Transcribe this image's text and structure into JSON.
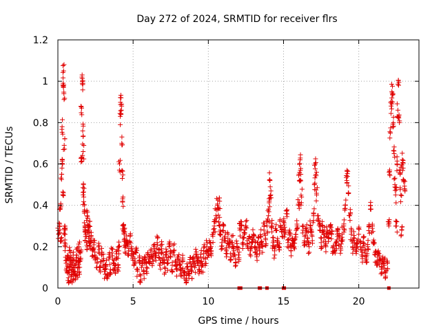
{
  "chart_data": {
    "type": "scatter",
    "title": "Day 272 of 2024, SRMTID for receiver flrs",
    "xlabel": "GPS time / hours",
    "ylabel": "SRMTID / TECUs",
    "xlim": [
      0,
      24
    ],
    "ylim": [
      0,
      1.2
    ],
    "xticks": [
      0,
      5,
      10,
      15,
      20
    ],
    "xtick_labels": [
      "0",
      "5",
      "10",
      "15",
      "20"
    ],
    "yticks": [
      0,
      0.2,
      0.4,
      0.6,
      0.8,
      1,
      1.2
    ],
    "ytick_labels": [
      "0",
      "0.2",
      "0.4",
      "0.6",
      "0.8",
      "1",
      "1.2"
    ],
    "grid": true,
    "marker": "+",
    "color": "#e00000",
    "series": [
      {
        "name": "flrs",
        "points": [
          [
            0.05,
            0.26
          ],
          [
            0.1,
            0.3
          ],
          [
            0.15,
            0.38
          ],
          [
            0.2,
            0.24
          ],
          [
            0.25,
            0.55
          ],
          [
            0.28,
            0.78
          ],
          [
            0.3,
            0.62
          ],
          [
            0.33,
            0.45
          ],
          [
            0.35,
            0.99
          ],
          [
            0.38,
            1.05
          ],
          [
            0.4,
            0.94
          ],
          [
            0.42,
            0.69
          ],
          [
            0.45,
            0.3
          ],
          [
            0.48,
            0.26
          ],
          [
            0.5,
            0.2
          ],
          [
            0.55,
            0.12
          ],
          [
            0.6,
            0.08
          ],
          [
            0.65,
            0.15
          ],
          [
            0.7,
            0.05
          ],
          [
            0.75,
            0.1
          ],
          [
            0.8,
            0.18
          ],
          [
            0.85,
            0.12
          ],
          [
            0.9,
            0.06
          ],
          [
            0.95,
            0.09
          ],
          [
            1.0,
            0.14
          ],
          [
            1.05,
            0.07
          ],
          [
            1.1,
            0.11
          ],
          [
            1.15,
            0.04
          ],
          [
            1.2,
            0.12
          ],
          [
            1.25,
            0.16
          ],
          [
            1.3,
            0.08
          ],
          [
            1.35,
            0.13
          ],
          [
            1.4,
            0.2
          ],
          [
            1.45,
            0.1
          ],
          [
            1.5,
            0.17
          ],
          [
            1.55,
            0.61
          ],
          [
            1.58,
            0.87
          ],
          [
            1.6,
            1.02
          ],
          [
            1.62,
            0.99
          ],
          [
            1.65,
            0.76
          ],
          [
            1.68,
            0.66
          ],
          [
            1.7,
            0.5
          ],
          [
            1.72,
            0.44
          ],
          [
            1.75,
            0.37
          ],
          [
            1.8,
            0.3
          ],
          [
            1.85,
            0.26
          ],
          [
            1.9,
            0.22
          ],
          [
            1.95,
            0.35
          ],
          [
            2.0,
            0.28
          ],
          [
            2.05,
            0.24
          ],
          [
            2.1,
            0.3
          ],
          [
            2.15,
            0.2
          ],
          [
            2.2,
            0.25
          ],
          [
            2.3,
            0.18
          ],
          [
            2.4,
            0.22
          ],
          [
            2.5,
            0.15
          ],
          [
            2.6,
            0.12
          ],
          [
            2.7,
            0.2
          ],
          [
            2.8,
            0.1
          ],
          [
            2.9,
            0.16
          ],
          [
            3.0,
            0.13
          ],
          [
            3.1,
            0.08
          ],
          [
            3.2,
            0.11
          ],
          [
            3.3,
            0.06
          ],
          [
            3.4,
            0.14
          ],
          [
            3.5,
            0.09
          ],
          [
            3.6,
            0.17
          ],
          [
            3.7,
            0.12
          ],
          [
            3.8,
            0.1
          ],
          [
            3.9,
            0.15
          ],
          [
            4.0,
            0.11
          ],
          [
            4.05,
            0.2
          ],
          [
            4.1,
            0.6
          ],
          [
            4.15,
            0.83
          ],
          [
            4.2,
            0.92
          ],
          [
            4.22,
            0.86
          ],
          [
            4.25,
            0.7
          ],
          [
            4.28,
            0.53
          ],
          [
            4.3,
            0.42
          ],
          [
            4.35,
            0.3
          ],
          [
            4.4,
            0.26
          ],
          [
            4.45,
            0.24
          ],
          [
            4.5,
            0.2
          ],
          [
            4.6,
            0.22
          ],
          [
            4.7,
            0.18
          ],
          [
            4.8,
            0.25
          ],
          [
            4.9,
            0.19
          ],
          [
            5.0,
            0.15
          ],
          [
            5.1,
            0.12
          ],
          [
            5.2,
            0.17
          ],
          [
            5.3,
            0.09
          ],
          [
            5.4,
            0.13
          ],
          [
            5.5,
            0.06
          ],
          [
            5.6,
            0.11
          ],
          [
            5.7,
            0.08
          ],
          [
            5.8,
            0.14
          ],
          [
            5.9,
            0.1
          ],
          [
            6.0,
            0.16
          ],
          [
            6.1,
            0.12
          ],
          [
            6.2,
            0.18
          ],
          [
            6.3,
            0.14
          ],
          [
            6.4,
            0.2
          ],
          [
            6.5,
            0.15
          ],
          [
            6.6,
            0.22
          ],
          [
            6.7,
            0.17
          ],
          [
            6.8,
            0.12
          ],
          [
            6.9,
            0.19
          ],
          [
            7.0,
            0.14
          ],
          [
            7.1,
            0.1
          ],
          [
            7.2,
            0.16
          ],
          [
            7.3,
            0.12
          ],
          [
            7.4,
            0.2
          ],
          [
            7.5,
            0.15
          ],
          [
            7.6,
            0.11
          ],
          [
            7.7,
            0.18
          ],
          [
            7.8,
            0.13
          ],
          [
            7.9,
            0.09
          ],
          [
            8.0,
            0.15
          ],
          [
            8.1,
            0.11
          ],
          [
            8.2,
            0.07
          ],
          [
            8.3,
            0.13
          ],
          [
            8.4,
            0.08
          ],
          [
            8.5,
            0.04
          ],
          [
            8.6,
            0.1
          ],
          [
            8.7,
            0.06
          ],
          [
            8.8,
            0.12
          ],
          [
            8.9,
            0.08
          ],
          [
            9.0,
            0.14
          ],
          [
            9.1,
            0.1
          ],
          [
            9.2,
            0.16
          ],
          [
            9.3,
            0.12
          ],
          [
            9.4,
            0.08
          ],
          [
            9.5,
            0.15
          ],
          [
            9.6,
            0.11
          ],
          [
            9.7,
            0.18
          ],
          [
            9.8,
            0.14
          ],
          [
            9.9,
            0.2
          ],
          [
            10.0,
            0.16
          ],
          [
            10.1,
            0.22
          ],
          [
            10.2,
            0.18
          ],
          [
            10.3,
            0.25
          ],
          [
            10.4,
            0.3
          ],
          [
            10.5,
            0.35
          ],
          [
            10.6,
            0.4
          ],
          [
            10.7,
            0.32
          ],
          [
            10.75,
            0.42
          ],
          [
            10.8,
            0.28
          ],
          [
            10.9,
            0.22
          ],
          [
            11.0,
            0.3
          ],
          [
            11.1,
            0.25
          ],
          [
            11.2,
            0.18
          ],
          [
            11.3,
            0.24
          ],
          [
            11.4,
            0.2
          ],
          [
            11.5,
            0.15
          ],
          [
            11.6,
            0.22
          ],
          [
            11.7,
            0.18
          ],
          [
            11.8,
            0.14
          ],
          [
            11.9,
            0.2
          ],
          [
            12.0,
            0.16
          ],
          [
            12.1,
            0.28
          ],
          [
            12.2,
            0.32
          ],
          [
            12.3,
            0.22
          ],
          [
            12.4,
            0.26
          ],
          [
            12.5,
            0.3
          ],
          [
            12.6,
            0.2
          ],
          [
            12.7,
            0.24
          ],
          [
            12.8,
            0.18
          ],
          [
            12.9,
            0.22
          ],
          [
            13.0,
            0.26
          ],
          [
            13.1,
            0.2
          ],
          [
            13.2,
            0.16
          ],
          [
            13.3,
            0.22
          ],
          [
            13.4,
            0.18
          ],
          [
            13.5,
            0.25
          ],
          [
            13.6,
            0.2
          ],
          [
            13.7,
            0.28
          ],
          [
            13.8,
            0.24
          ],
          [
            13.9,
            0.3
          ],
          [
            14.0,
            0.35
          ],
          [
            14.05,
            0.42
          ],
          [
            14.1,
            0.52
          ],
          [
            14.15,
            0.45
          ],
          [
            14.2,
            0.3
          ],
          [
            14.3,
            0.22
          ],
          [
            14.4,
            0.18
          ],
          [
            14.5,
            0.28
          ],
          [
            14.6,
            0.24
          ],
          [
            14.7,
            0.2
          ],
          [
            14.8,
            0.3
          ],
          [
            14.9,
            0.25
          ],
          [
            15.0,
            0.32
          ],
          [
            15.1,
            0.26
          ],
          [
            15.2,
            0.36
          ],
          [
            15.3,
            0.22
          ],
          [
            15.4,
            0.28
          ],
          [
            15.5,
            0.18
          ],
          [
            15.6,
            0.24
          ],
          [
            15.7,
            0.2
          ],
          [
            15.8,
            0.26
          ],
          [
            15.9,
            0.3
          ],
          [
            16.0,
            0.4
          ],
          [
            16.05,
            0.52
          ],
          [
            16.1,
            0.62
          ],
          [
            16.15,
            0.55
          ],
          [
            16.2,
            0.44
          ],
          [
            16.3,
            0.3
          ],
          [
            16.4,
            0.22
          ],
          [
            16.5,
            0.28
          ],
          [
            16.6,
            0.24
          ],
          [
            16.7,
            0.2
          ],
          [
            16.8,
            0.3
          ],
          [
            16.9,
            0.25
          ],
          [
            17.0,
            0.35
          ],
          [
            17.05,
            0.5
          ],
          [
            17.1,
            0.6
          ],
          [
            17.15,
            0.55
          ],
          [
            17.2,
            0.45
          ],
          [
            17.3,
            0.35
          ],
          [
            17.4,
            0.28
          ],
          [
            17.5,
            0.22
          ],
          [
            17.6,
            0.3
          ],
          [
            17.7,
            0.26
          ],
          [
            17.8,
            0.2
          ],
          [
            17.9,
            0.28
          ],
          [
            18.0,
            0.24
          ],
          [
            18.1,
            0.3
          ],
          [
            18.2,
            0.26
          ],
          [
            18.3,
            0.2
          ],
          [
            18.4,
            0.18
          ],
          [
            18.5,
            0.22
          ],
          [
            18.6,
            0.28
          ],
          [
            18.7,
            0.24
          ],
          [
            18.8,
            0.2
          ],
          [
            18.9,
            0.26
          ],
          [
            19.0,
            0.3
          ],
          [
            19.1,
            0.4
          ],
          [
            19.2,
            0.52
          ],
          [
            19.25,
            0.54
          ],
          [
            19.3,
            0.46
          ],
          [
            19.4,
            0.35
          ],
          [
            19.5,
            0.26
          ],
          [
            19.6,
            0.2
          ],
          [
            19.7,
            0.24
          ],
          [
            19.8,
            0.18
          ],
          [
            19.9,
            0.22
          ],
          [
            20.0,
            0.26
          ],
          [
            20.1,
            0.2
          ],
          [
            20.2,
            0.16
          ],
          [
            20.3,
            0.22
          ],
          [
            20.4,
            0.18
          ],
          [
            20.5,
            0.14
          ],
          [
            20.6,
            0.2
          ],
          [
            20.7,
            0.3
          ],
          [
            20.8,
            0.38
          ],
          [
            20.9,
            0.3
          ],
          [
            21.0,
            0.22
          ],
          [
            21.1,
            0.16
          ],
          [
            21.2,
            0.12
          ],
          [
            21.3,
            0.18
          ],
          [
            21.4,
            0.14
          ],
          [
            21.5,
            0.1
          ],
          [
            21.6,
            0.15
          ],
          [
            21.7,
            0.11
          ],
          [
            21.8,
            0.08
          ],
          [
            21.9,
            0.12
          ],
          [
            22.0,
            0.3
          ],
          [
            22.05,
            0.55
          ],
          [
            22.1,
            0.75
          ],
          [
            22.15,
            0.88
          ],
          [
            22.2,
            0.95
          ],
          [
            22.25,
            0.9
          ],
          [
            22.3,
            0.8
          ],
          [
            22.35,
            0.65
          ],
          [
            22.4,
            0.5
          ],
          [
            22.45,
            0.45
          ],
          [
            22.5,
            0.3
          ],
          [
            22.55,
            0.6
          ],
          [
            22.6,
            0.86
          ],
          [
            22.65,
            0.98
          ],
          [
            22.7,
            0.8
          ],
          [
            22.75,
            0.55
          ],
          [
            22.8,
            0.45
          ],
          [
            22.85,
            0.28
          ],
          [
            22.9,
            0.62
          ],
          [
            22.95,
            0.58
          ],
          [
            23.0,
            0.52
          ],
          [
            23.05,
            0.48
          ]
        ]
      }
    ],
    "squares": [
      12.05,
      12.15,
      13.4,
      13.45,
      13.9,
      15.0,
      15.05,
      22.0
    ]
  }
}
